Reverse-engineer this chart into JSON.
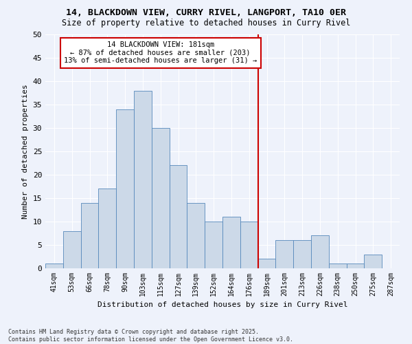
{
  "title_line1": "14, BLACKDOWN VIEW, CURRY RIVEL, LANGPORT, TA10 0ER",
  "title_line2": "Size of property relative to detached houses in Curry Rivel",
  "xlabel": "Distribution of detached houses by size in Curry Rivel",
  "ylabel": "Number of detached properties",
  "footer": "Contains HM Land Registry data © Crown copyright and database right 2025.\nContains public sector information licensed under the Open Government Licence v3.0.",
  "bar_labels": [
    "41sqm",
    "53sqm",
    "66sqm",
    "78sqm",
    "90sqm",
    "103sqm",
    "115sqm",
    "127sqm",
    "139sqm",
    "152sqm",
    "164sqm",
    "176sqm",
    "189sqm",
    "201sqm",
    "213sqm",
    "226sqm",
    "238sqm",
    "250sqm",
    "275sqm",
    "287sqm"
  ],
  "bar_values": [
    1,
    8,
    14,
    17,
    34,
    38,
    30,
    22,
    14,
    10,
    11,
    10,
    2,
    6,
    6,
    7,
    1,
    1,
    3,
    0
  ],
  "bar_color": "#ccd9e8",
  "bar_edge_color": "#5588bb",
  "bg_color": "#eef2fb",
  "grid_color": "#ffffff",
  "annotation_text": "14 BLACKDOWN VIEW: 181sqm\n← 87% of detached houses are smaller (203)\n13% of semi-detached houses are larger (31) →",
  "annotation_box_color": "#cc0000",
  "vline_x_label": "176sqm",
  "ylim": [
    0,
    50
  ],
  "yticks": [
    0,
    5,
    10,
    15,
    20,
    25,
    30,
    35,
    40,
    45,
    50
  ]
}
